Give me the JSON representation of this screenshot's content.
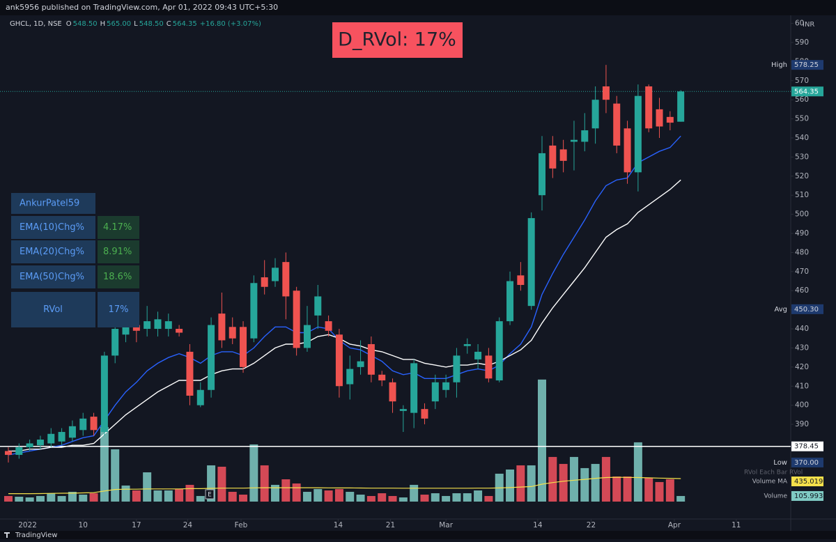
{
  "header": {
    "publisher": "ank5956 published on TradingView.com, Apr 01, 2022 09:43 UTC+5:30"
  },
  "legend": {
    "symbol": "GHCL, 1D, NSE",
    "ohlc": [
      {
        "key": "O",
        "value": "548.50"
      },
      {
        "key": "H",
        "value": "565.00"
      },
      {
        "key": "L",
        "value": "548.50"
      },
      {
        "key": "C",
        "value": "564.35"
      }
    ],
    "change": "+16.80 (+3.07%)"
  },
  "banner": "D_RVol: 17%",
  "table": {
    "title": "AnkurPatel59",
    "rows": [
      [
        "EMA(10)Chg%",
        "4.17%"
      ],
      [
        "EMA(20)Chg%",
        "8.91%"
      ],
      [
        "EMA(50)Chg%",
        "18.6%"
      ],
      [
        "RVol",
        "17%"
      ]
    ]
  },
  "footer": {
    "brand": "TradingView"
  },
  "earnings": "E",
  "rvol_indicator": "RVol Each Bar RVol",
  "chart_data": {
    "type": "candlestick",
    "currency": "INR",
    "open": [
      376,
      374,
      378,
      379,
      380,
      381,
      383,
      387,
      394,
      386,
      426,
      437,
      442,
      440,
      440,
      440,
      440,
      428,
      400,
      408,
      448,
      441,
      441,
      435,
      467,
      465,
      475,
      460,
      430,
      447,
      444,
      437,
      411,
      420,
      432,
      416,
      412,
      397,
      396,
      398,
      402,
      408,
      412,
      431,
      424,
      426,
      413,
      444,
      468,
      452,
      510,
      536,
      534,
      538,
      538,
      545,
      567,
      558,
      545,
      522,
      567,
      555,
      551,
      548.5
    ],
    "high": [
      378,
      380,
      382,
      384,
      388,
      388,
      392,
      396,
      396,
      428,
      446,
      447,
      447,
      452,
      449,
      448,
      442,
      432,
      412,
      446,
      459,
      446,
      444,
      468,
      476,
      477,
      480,
      462,
      452,
      463,
      447,
      440,
      426,
      434,
      436,
      418,
      414,
      400,
      424,
      401,
      416,
      416,
      430,
      435,
      432,
      430,
      446,
      470,
      475,
      501,
      541,
      541,
      539,
      549,
      553,
      567,
      578.25,
      562,
      549,
      568,
      568,
      561,
      554,
      565
    ],
    "low": [
      370,
      372,
      376,
      377,
      378,
      379,
      381,
      384,
      384,
      384,
      422,
      433,
      433,
      436,
      436,
      436,
      436,
      400,
      399,
      404,
      430,
      432,
      417,
      433,
      458,
      462,
      445,
      426,
      428,
      440,
      436,
      404,
      403,
      416,
      412,
      410,
      396,
      386,
      388,
      390,
      398,
      404,
      404,
      427,
      419,
      412,
      412,
      442,
      460,
      450,
      502,
      519,
      522,
      523,
      533,
      537,
      553,
      532,
      516,
      512,
      543,
      540,
      544,
      548.5
    ],
    "close": [
      374,
      378,
      380,
      382,
      385,
      386,
      389,
      393,
      387,
      426,
      440,
      442,
      439,
      444,
      445,
      444,
      438,
      405,
      408,
      442,
      434,
      435,
      420,
      464,
      462,
      472,
      457,
      430,
      442,
      457,
      439,
      410,
      419,
      423,
      416,
      413,
      402,
      398,
      422,
      393,
      412,
      412,
      426,
      432,
      428,
      414,
      444,
      465,
      463,
      498,
      532,
      524,
      528,
      539,
      544,
      560,
      560,
      536,
      522,
      562,
      545,
      546,
      548,
      564.35
    ],
    "up_color": "#26a69a",
    "down_color": "#ef5350",
    "lines": [
      {
        "color": "#2962ff",
        "values": [
          374,
          375,
          376,
          377,
          378,
          379,
          381,
          383,
          384,
          392,
          400,
          407,
          412,
          418,
          422,
          425,
          427,
          425,
          422,
          426,
          428,
          428,
          426,
          430,
          436,
          441,
          441,
          438,
          438,
          441,
          440,
          434,
          430,
          429,
          426,
          423,
          418,
          416,
          417,
          414,
          414,
          414,
          416,
          418,
          419,
          418,
          421,
          427,
          432,
          441,
          458,
          469,
          479,
          488,
          497,
          507,
          515,
          518,
          519,
          527,
          530,
          533,
          535,
          541
        ]
      },
      {
        "color": "#ffffff",
        "values": [
          376,
          376,
          377,
          377,
          378,
          378,
          379,
          379,
          380,
          385,
          390,
          395,
          399,
          403,
          407,
          410,
          413,
          413,
          413,
          416,
          418,
          419,
          419,
          422,
          426,
          430,
          432,
          432,
          433,
          436,
          437,
          435,
          432,
          431,
          429,
          428,
          426,
          424,
          424,
          422,
          421,
          420,
          421,
          421,
          422,
          421,
          423,
          426,
          429,
          434,
          443,
          451,
          458,
          465,
          472,
          480,
          488,
          492,
          495,
          501,
          505,
          509,
          513,
          518
        ]
      }
    ],
    "hline": {
      "value": 378.45,
      "value_label": "378.45",
      "color": "#ffffff"
    },
    "last": {
      "value": 564.35,
      "value_label": "564.35",
      "color": "#26a69a"
    },
    "badges": [
      {
        "name": "High",
        "value": 578.25,
        "value_label": "578.25"
      },
      {
        "name": "Avg",
        "value": 450.3,
        "value_label": "450.30"
      },
      {
        "name": "Low",
        "value": 370,
        "value_label": "370.00"
      }
    ],
    "ylim": [
      340.4,
      601.3
    ],
    "yticks": [
      390,
      400,
      410,
      420,
      430,
      440,
      450,
      460,
      470,
      480,
      490,
      500,
      510,
      520,
      530,
      540,
      550,
      560,
      570,
      580,
      590,
      {
        "value": 600,
        "label": "60"
      }
    ],
    "xticks": [
      {
        "value": 1.8,
        "label": "2022"
      },
      {
        "value": 7,
        "label": "10"
      },
      {
        "value": 12,
        "label": "17"
      },
      {
        "value": 16.8,
        "label": "24"
      },
      {
        "value": 21.8,
        "label": "Feb"
      },
      {
        "value": 30.9,
        "label": "14"
      },
      {
        "value": 35.8,
        "label": "21"
      },
      {
        "value": 41,
        "label": "Mar"
      },
      {
        "value": 49.6,
        "label": "14"
      },
      {
        "value": 54.6,
        "label": "22"
      },
      {
        "value": 62.4,
        "label": "Apr"
      },
      {
        "value": 68.2,
        "label": "11"
      }
    ],
    "volume": {
      "up_color": "#80cbc4",
      "down_color": "#f7525f",
      "y2lim": [
        0,
        2400
      ],
      "values": [
        106,
        92,
        79,
        106,
        158,
        106,
        185,
        132,
        158,
        1410,
        990,
        304,
        211,
        554,
        211,
        211,
        238,
        317,
        106,
        686,
        660,
        185,
        132,
        1082,
        686,
        317,
        422,
        343,
        185,
        238,
        211,
        238,
        185,
        132,
        106,
        158,
        106,
        79,
        317,
        132,
        158,
        106,
        158,
        158,
        211,
        106,
        528,
        607,
        686,
        686,
        2310,
        845,
        713,
        845,
        634,
        713,
        845,
        475,
        475,
        1122,
        449,
        370,
        422,
        105.993
      ],
      "ma": {
        "name": "Volume MA",
        "color": "#f5e14b",
        "values": [
          150,
          150,
          150,
          152,
          155,
          158,
          160,
          165,
          170,
          200,
          230,
          235,
          235,
          240,
          240,
          240,
          240,
          245,
          245,
          250,
          255,
          255,
          255,
          260,
          262,
          262,
          262,
          263,
          262,
          262,
          260,
          258,
          258,
          257,
          255,
          255,
          254,
          253,
          253,
          253,
          253,
          253,
          253,
          253,
          254,
          254,
          258,
          265,
          275,
          285,
          330,
          360,
          385,
          405,
          420,
          440,
          455,
          460,
          458,
          455,
          450,
          445,
          440,
          435.019
        ],
        "value_label": "435.019K"
      },
      "name": "Volume",
      "value_label": "105.993K"
    }
  }
}
